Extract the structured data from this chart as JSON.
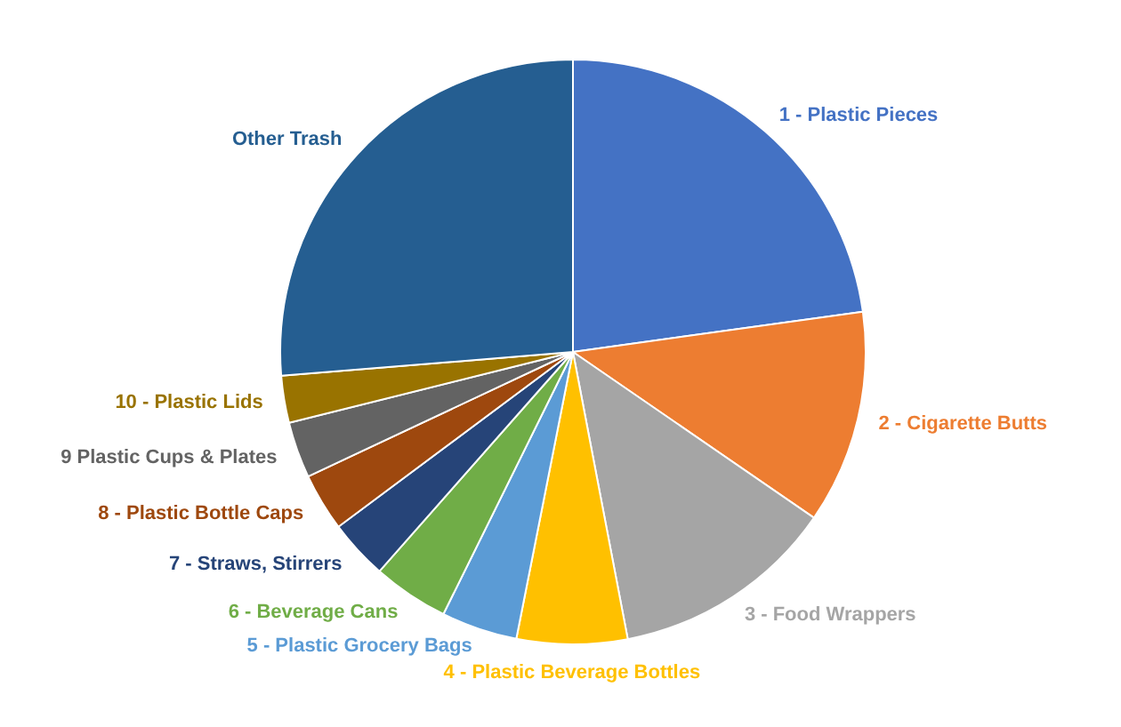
{
  "chart_data": {
    "type": "pie",
    "categories": [
      "1 - Plastic Pieces",
      "2 - Cigarette Butts",
      "3 - Food Wrappers",
      "4 - Plastic Beverage Bottles",
      "5 - Plastic Grocery Bags",
      "6 - Beverage Cans",
      "7 - Straws, Stirrers",
      "8 - Plastic Bottle Caps",
      "9 Plastic Cups & Plates",
      "10 - Plastic Lids",
      "Other Trash"
    ],
    "values": [
      22.8,
      11.8,
      12.4,
      6.1,
      4.2,
      4.2,
      3.3,
      3.2,
      3.1,
      2.6,
      26.3
    ],
    "colors": [
      "#4472c4",
      "#ed7d31",
      "#a5a5a5",
      "#ffc000",
      "#5b9bd5",
      "#70ad47",
      "#264478",
      "#9e480e",
      "#636363",
      "#997300",
      "#255e91"
    ],
    "legend": false
  }
}
